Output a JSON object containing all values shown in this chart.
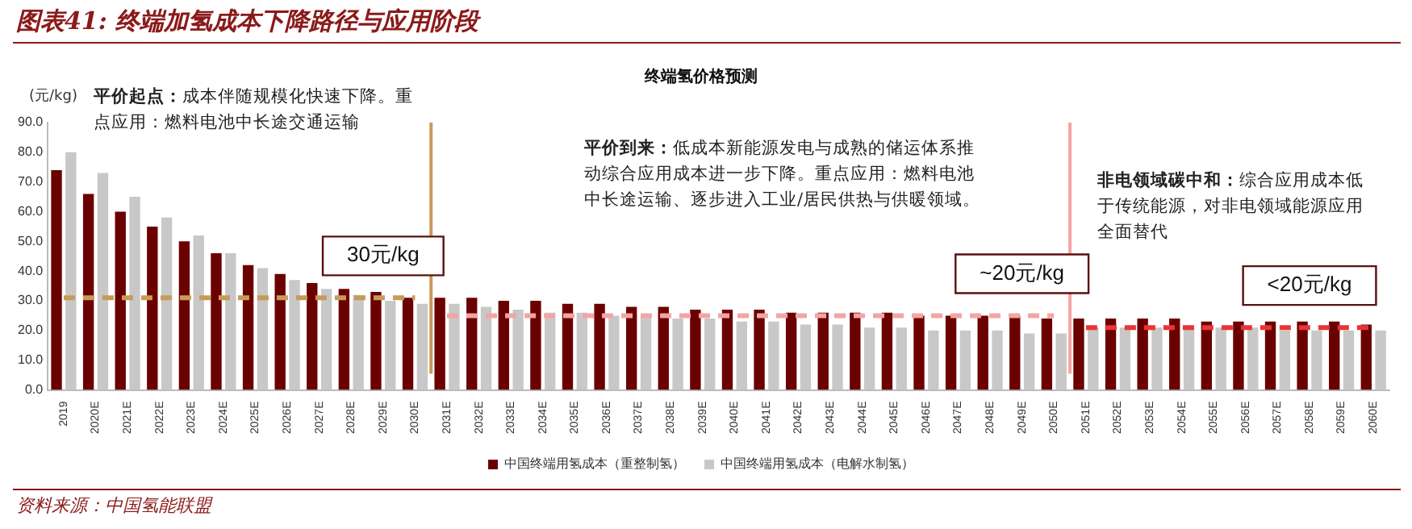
{
  "chart_data": {
    "type": "bar",
    "title": "终端氢价格预测",
    "subtitle": "图表41: 终端加氢成本下降路径与应用阶段",
    "ylabel": "(元/kg)",
    "categories": [
      "2019",
      "2020E",
      "2021E",
      "2022E",
      "2023E",
      "2024E",
      "2025E",
      "2026E",
      "2027E",
      "2028E",
      "2029E",
      "2030E",
      "2031E",
      "2032E",
      "2033E",
      "2034E",
      "2035E",
      "2036E",
      "2037E",
      "2038E",
      "2039E",
      "2040E",
      "2041E",
      "2042E",
      "2043E",
      "2044E",
      "2045E",
      "2046E",
      "2047E",
      "2048E",
      "2049E",
      "2050E",
      "2051E",
      "2052E",
      "2053E",
      "2054E",
      "2055E",
      "2056E",
      "2057E",
      "2058E",
      "2059E",
      "2060E"
    ],
    "series": [
      {
        "name": "中国终端用氢成本（重整制氢）",
        "color": "#6b0000",
        "values": [
          74,
          66,
          60,
          55,
          50,
          46,
          42,
          39,
          36,
          34,
          33,
          31,
          31,
          31,
          30,
          30,
          29,
          29,
          28,
          28,
          27,
          27,
          27,
          26,
          26,
          26,
          26,
          25,
          25,
          25,
          25,
          24,
          24,
          24,
          24,
          24,
          23,
          23,
          23,
          23,
          23,
          22
        ]
      },
      {
        "name": "中国终端用氢成本（电解水制氢）",
        "color": "#c8c8c8",
        "values": [
          80,
          73,
          65,
          58,
          52,
          46,
          41,
          37,
          34,
          32,
          30,
          29,
          29,
          28,
          27,
          26,
          26,
          25,
          25,
          24,
          24,
          23,
          23,
          22,
          22,
          21,
          21,
          20,
          20,
          20,
          19,
          19,
          21,
          21,
          21,
          21,
          21,
          21,
          20,
          20,
          20,
          20
        ]
      },
      {
        "type": "line",
        "line_style": "dashed",
        "color": "#c89a5a",
        "values": [
          31,
          31,
          31,
          31,
          31,
          31,
          31,
          31,
          31,
          31,
          31,
          31,
          null,
          null,
          null,
          null,
          null,
          null,
          null,
          null,
          null,
          null,
          null,
          null,
          null,
          null,
          null,
          null,
          null,
          null,
          null,
          null,
          null,
          null,
          null,
          null,
          null,
          null,
          null,
          null,
          null,
          null
        ]
      },
      {
        "type": "line",
        "line_style": "dashed",
        "color": "#f4a4a4",
        "values": [
          null,
          null,
          null,
          null,
          null,
          null,
          null,
          null,
          null,
          null,
          null,
          null,
          25,
          25,
          25,
          25,
          25,
          25,
          25,
          25,
          25,
          25,
          25,
          25,
          25,
          25,
          25,
          25,
          25,
          25,
          25,
          25,
          null,
          null,
          null,
          null,
          null,
          null,
          null,
          null,
          null,
          null
        ]
      },
      {
        "type": "line",
        "line_style": "dashed",
        "color": "#e83535",
        "values": [
          null,
          null,
          null,
          null,
          null,
          null,
          null,
          null,
          null,
          null,
          null,
          null,
          null,
          null,
          null,
          null,
          null,
          null,
          null,
          null,
          null,
          null,
          null,
          null,
          null,
          null,
          null,
          null,
          null,
          null,
          null,
          null,
          21,
          21,
          21,
          21,
          21,
          21,
          21,
          21,
          21,
          21
        ]
      }
    ],
    "ylim": [
      0,
      90
    ],
    "yticks": [
      {
        "value": 0,
        "label": "0.0"
      },
      {
        "value": 10,
        "label": "10.0"
      },
      {
        "value": 20,
        "label": "20.0"
      },
      {
        "value": 30,
        "label": "30.0"
      },
      {
        "value": 40,
        "label": "40.0"
      },
      {
        "value": 50,
        "label": "50.0"
      },
      {
        "value": 60,
        "label": "60.0"
      },
      {
        "value": 70,
        "label": "70.0"
      },
      {
        "value": 80,
        "label": "80.0"
      },
      {
        "value": 90,
        "label": "90.0"
      }
    ],
    "ref_lines": [
      {
        "axis": "x",
        "value": "2030E",
        "color": "#c89a5a",
        "line_style": "solid"
      },
      {
        "axis": "x",
        "value": "2050E",
        "color": "#f4a4a4",
        "line_style": "solid"
      }
    ],
    "grid": false,
    "legend": "bottom",
    "marker": "none",
    "annotations": [
      "平价起点：成本伴随规模化快速下降。重点应用：燃料电池中长途交通运输",
      "平价到来：低成本新能源发电与成熟的储运体系推动综合应用成本进一步下降。重点应用：燃料电池中长途运输、逐步进入工业/居民供热与供暖领域。",
      "非电领域碳中和：综合应用成本低于传统能源，对非电领域能源应用全面替代",
      {
        "text": "30元/kg",
        "x": "2029E",
        "y": 31
      },
      {
        "text": "~20元/kg",
        "x": "2049E",
        "y": 25
      },
      {
        "text": "<20元/kg",
        "x": "2058E",
        "y": 21
      },
      "资料来源：中国氢能联盟"
    ]
  }
}
